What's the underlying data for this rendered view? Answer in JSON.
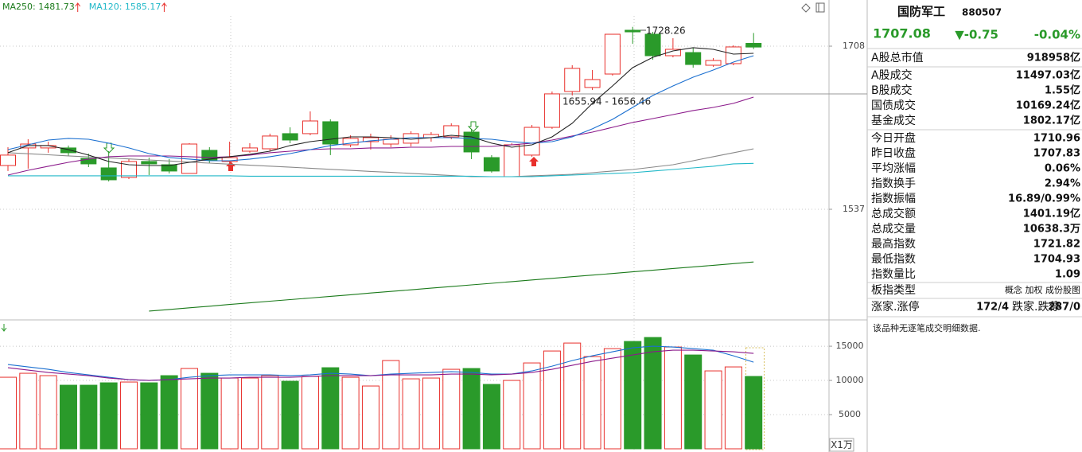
{
  "chart_data": [
    {
      "type": "candlestick",
      "up_color": "#e8302c",
      "down_color": "#2a9a2a",
      "ylim": [
        1422.7,
        1756.4
      ],
      "yticks": [
        1708,
        1537
      ],
      "grid": true,
      "open": [
        1582.9,
        1601.3,
        1601.3,
        1601.3,
        1590.4,
        1580.4,
        1570.4,
        1587.1,
        1583.7,
        1574.6,
        1598.8,
        1587.1,
        1597.9,
        1600.4,
        1616.3,
        1616.3,
        1628.8,
        1604.6,
        1607.9,
        1605.4,
        1606.3,
        1612.1,
        1612.9,
        1617.9,
        1591.2,
        1571.2,
        1593.8,
        1622.9,
        1660.5,
        1664.7,
        1678.8,
        1724.7,
        1720.5,
        1698.0,
        1701.3,
        1688.0,
        1689.7,
        1710.96
      ],
      "high": [
        1602.1,
        1610.4,
        1607.9,
        1603.8,
        1595.4,
        1597.9,
        1589.6,
        1591.2,
        1589.6,
        1606.3,
        1602.1,
        1607.9,
        1606.3,
        1616.3,
        1622.9,
        1639.6,
        1631.3,
        1614.6,
        1616.3,
        1614.6,
        1618.8,
        1617.9,
        1627.1,
        1621.3,
        1593.8,
        1606.3,
        1625.4,
        1660.5,
        1688.0,
        1683.0,
        1720.5,
        1728.26,
        1723.0,
        1716.3,
        1706.3,
        1695.5,
        1708.9,
        1721.82
      ],
      "low": [
        1577.1,
        1579.6,
        1596.3,
        1592.9,
        1581.2,
        1566.2,
        1568.7,
        1572.9,
        1574.6,
        1574.6,
        1585.4,
        1585.4,
        1596.3,
        1597.9,
        1606.3,
        1614.6,
        1593.8,
        1602.1,
        1599.6,
        1602.1,
        1602.9,
        1607.9,
        1610.4,
        1589.6,
        1575.4,
        1571.2,
        1592.1,
        1621.3,
        1656.3,
        1662.1,
        1677.1,
        1710.5,
        1693.8,
        1696.3,
        1685.5,
        1686.3,
        1688.0,
        1704.93
      ],
      "close": [
        1593.8,
        1605.4,
        1603.8,
        1596.3,
        1584.6,
        1567.9,
        1587.1,
        1584.6,
        1577.1,
        1605.4,
        1588.7,
        1591.2,
        1601.3,
        1613.8,
        1609.6,
        1629.6,
        1605.4,
        1611.3,
        1612.1,
        1610.4,
        1616.3,
        1615.4,
        1624.6,
        1597.1,
        1577.1,
        1604.6,
        1622.9,
        1658.0,
        1684.7,
        1673.0,
        1720.5,
        1723.0,
        1698.0,
        1704.7,
        1688.8,
        1693.0,
        1707.2,
        1707.08
      ],
      "series": [
        {
          "name": "MA250: 1481.73",
          "color": "#1a7a1a",
          "values": [
            null,
            null,
            null,
            null,
            null,
            null,
            null,
            1430.3,
            1432.0,
            1433.7,
            1435.4,
            1437.2,
            1438.9,
            1440.6,
            1442.3,
            1444.0,
            1445.7,
            1447.4,
            1449.2,
            1450.9,
            1452.6,
            1454.3,
            1456.0,
            1457.7,
            1459.4,
            1461.2,
            1462.9,
            1464.6,
            1466.3,
            1468.0,
            1469.7,
            1471.4,
            1473.1,
            1474.9,
            1476.6,
            1478.3,
            1480.0,
            1481.73
          ]
        },
        {
          "name": "MA120: 1585.17",
          "color": "#20b8c8",
          "values": [
            1572.1,
            1572.1,
            1572.1,
            1572.1,
            1572.1,
            1572.1,
            1572.1,
            1572.1,
            1572.1,
            1572.1,
            1572.1,
            1572.1,
            1571.7,
            1571.7,
            1571.7,
            1571.7,
            1571.7,
            1571.7,
            1571.7,
            1571.7,
            1571.7,
            1571.7,
            1571.7,
            1571.7,
            1571.2,
            1571.2,
            1571.2,
            1572.1,
            1572.9,
            1573.7,
            1574.6,
            1575.4,
            1577.1,
            1578.7,
            1580.4,
            1582.1,
            1584.6,
            1585.17
          ]
        }
      ],
      "lines": [
        {
          "color": "#888888",
          "values": [
            1596.3,
            1595.2,
            1594.1,
            1593.0,
            1591.9,
            1590.8,
            1589.8,
            1588.7,
            1587.6,
            1586.5,
            1585.4,
            1584.3,
            1583.2,
            1582.2,
            1581.1,
            1580.0,
            1578.9,
            1577.8,
            1576.7,
            1575.7,
            1574.6,
            1573.5,
            1572.4,
            1571.3,
            1571.2,
            1571.2,
            1572.1,
            1572.9,
            1573.7,
            1575.4,
            1577.1,
            1578.7,
            1581.2,
            1583.7,
            1587.9,
            1592.1,
            1596.3,
            1600.4
          ]
        },
        {
          "color": "#8b1a8b",
          "values": [
            1572.9,
            1577.9,
            1582.1,
            1586.2,
            1589.6,
            1592.1,
            1592.9,
            1592.9,
            1592.9,
            1592.1,
            1591.3,
            1592.1,
            1593.8,
            1596.3,
            1597.9,
            1599.6,
            1600.4,
            1600.4,
            1601.3,
            1601.3,
            1602.1,
            1602.1,
            1602.9,
            1602.9,
            1602.9,
            1604.6,
            1606.3,
            1609.6,
            1613.8,
            1617.9,
            1622.9,
            1628.0,
            1632.1,
            1636.3,
            1640.5,
            1643.8,
            1648.0,
            1654.6
          ]
        },
        {
          "color": "#1a6fd0",
          "values": [
            1599.6,
            1604.6,
            1609.6,
            1611.3,
            1610.4,
            1606.3,
            1601.3,
            1595.4,
            1591.3,
            1589.6,
            1587.9,
            1587.9,
            1589.6,
            1592.1,
            1595.4,
            1599.6,
            1603.8,
            1606.3,
            1608.8,
            1610.4,
            1612.1,
            1612.1,
            1612.1,
            1611.3,
            1610.4,
            1607.9,
            1606.3,
            1607.9,
            1612.9,
            1621.3,
            1631.3,
            1643.8,
            1656.3,
            1666.3,
            1675.5,
            1683.0,
            1691.3,
            1698.0
          ]
        },
        {
          "color": "#222222",
          "values": [
            1596.3,
            1603.8,
            1603.8,
            1599.6,
            1593.8,
            1587.1,
            1583.7,
            1582.9,
            1582.9,
            1586.2,
            1589.6,
            1592.1,
            1594.6,
            1597.9,
            1603.8,
            1607.9,
            1610.4,
            1612.9,
            1612.9,
            1612.1,
            1610.4,
            1612.1,
            1614.6,
            1612.9,
            1606.3,
            1602.1,
            1604.6,
            1612.9,
            1627.1,
            1648.0,
            1666.3,
            1685.5,
            1696.3,
            1703.0,
            1706.4,
            1704.7,
            1699.7,
            1700.5
          ]
        }
      ],
      "annotations": [
        "1728.26",
        "1655.94 - 1656.46"
      ]
    },
    {
      "type": "bar",
      "ylim": [
        0,
        18500
      ],
      "yticks": [
        15000,
        10000,
        5000
      ],
      "grid": true,
      "unit_label": "X1万",
      "values": [
        10465,
        11047,
        10698,
        9302,
        9302,
        9651,
        9767,
        9651,
        10698,
        11744,
        11047,
        10349,
        10349,
        10698,
        9884,
        10581,
        11860,
        10465,
        9186,
        12907,
        10233,
        10349,
        11628,
        11744,
        9419,
        10000,
        12558,
        14302,
        15465,
        13488,
        14651,
        15698,
        16279,
        14884,
        13721,
        11395,
        11977,
        10581
      ],
      "lines": [
        {
          "color": "#1a6fd0",
          "values": [
            12326,
            11977,
            11628,
            11163,
            10814,
            10465,
            10116,
            10000,
            10116,
            10465,
            10698,
            10814,
            10814,
            10814,
            10698,
            10814,
            11047,
            10930,
            10698,
            10930,
            11047,
            11163,
            11279,
            11163,
            10930,
            10930,
            11395,
            12093,
            12907,
            13605,
            14186,
            14767,
            15000,
            14884,
            14651,
            14419,
            13605,
            12674
          ]
        },
        {
          "color": "#8b1a8b",
          "values": [
            11860,
            11512,
            11163,
            10930,
            10698,
            10349,
            10116,
            10000,
            10116,
            10233,
            10349,
            10349,
            10465,
            10465,
            10465,
            10581,
            10698,
            10698,
            10698,
            10814,
            10814,
            10814,
            10930,
            10930,
            10814,
            10930,
            11163,
            11628,
            12209,
            12791,
            13256,
            13721,
            14186,
            14419,
            14419,
            14302,
            14186,
            13953
          ]
        }
      ]
    }
  ],
  "panel": {
    "title": "国防军工",
    "code": "880507",
    "price": "1707.08",
    "change": "▼-0.75",
    "change_pct": "-0.04%",
    "rows": [
      {
        "label": "A股总市值",
        "value": "918958亿"
      },
      {
        "label": "A股成交",
        "value": "11497.03亿"
      },
      {
        "label": "B股成交",
        "value": "1.55亿"
      },
      {
        "label": "国债成交",
        "value": "10169.24亿"
      },
      {
        "label": "基金成交",
        "value": "1802.17亿"
      },
      {
        "label": "今日开盘",
        "value": "1710.96",
        "color": "#e8302c"
      },
      {
        "label": "昨日收盘",
        "value": "1707.83"
      },
      {
        "label": "平均涨幅",
        "value": "0.06%",
        "color": "#e8302c"
      },
      {
        "label": "指数换手",
        "value": "2.94%"
      },
      {
        "label": "指数振幅",
        "value": "16.89/0.99%"
      },
      {
        "label": "总成交额",
        "value": "1401.19亿"
      },
      {
        "label": "总成交量",
        "value": "10638.3万"
      },
      {
        "label": "最高指数",
        "value": "1721.82",
        "color": "#e8302c"
      },
      {
        "label": "最低指数",
        "value": "1704.93",
        "color": "#2a9a2a"
      },
      {
        "label": "指数量比",
        "value": "1.09",
        "color": "#e8302c"
      },
      {
        "label": "板指类型",
        "value": "概念 加权 成份股图",
        "color": "#555555"
      }
    ],
    "breadth": {
      "up_label": "涨家.涨停",
      "up_value": "172/4",
      "down_label": "跌家.跌停",
      "down_value": "287/0"
    },
    "note": "该品种无逐笔成交明细数据."
  }
}
